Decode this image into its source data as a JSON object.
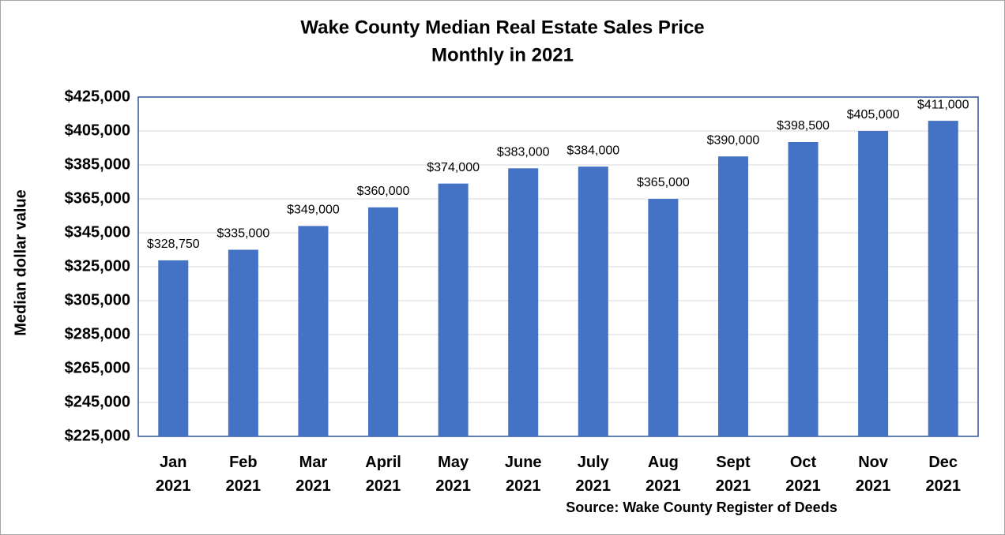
{
  "chart_data": {
    "type": "bar",
    "title": "Wake County Median Real Estate Sales Price",
    "subtitle": "Monthly in 2021",
    "y_label": "Median dollar value",
    "source": "Source: Wake County Register of Deeds",
    "categories": [
      "Jan 2021",
      "Feb 2021",
      "Mar 2021",
      "April 2021",
      "May 2021",
      "June 2021",
      "July 2021",
      "Aug 2021",
      "Sept 2021",
      "Oct 2021",
      "Nov 2021",
      "Dec 2021"
    ],
    "values": [
      328750,
      335000,
      349000,
      360000,
      374000,
      383000,
      384000,
      365000,
      390000,
      398500,
      405000,
      411000
    ],
    "value_labels": [
      "$328,750",
      "$335,000",
      "$349,000",
      "$360,000",
      "$374,000",
      "$383,000",
      "$384,000",
      "$365,000",
      "$390,000",
      "$398,500",
      "$405,000",
      "$411,000"
    ],
    "color": "#4472c4",
    "ylim": [
      225000,
      425000
    ],
    "yticks": [
      {
        "value": 225000,
        "label": "$225,000"
      },
      {
        "value": 245000,
        "label": "$245,000"
      },
      {
        "value": 265000,
        "label": "$265,000"
      },
      {
        "value": 285000,
        "label": "$285,000"
      },
      {
        "value": 305000,
        "label": "$305,000"
      },
      {
        "value": 325000,
        "label": "$325,000"
      },
      {
        "value": 345000,
        "label": "$345,000"
      },
      {
        "value": 365000,
        "label": "$365,000"
      },
      {
        "value": 385000,
        "label": "$385,000"
      },
      {
        "value": 405000,
        "label": "$405,000"
      },
      {
        "value": 425000,
        "label": "$425,000"
      }
    ],
    "grid": true
  }
}
